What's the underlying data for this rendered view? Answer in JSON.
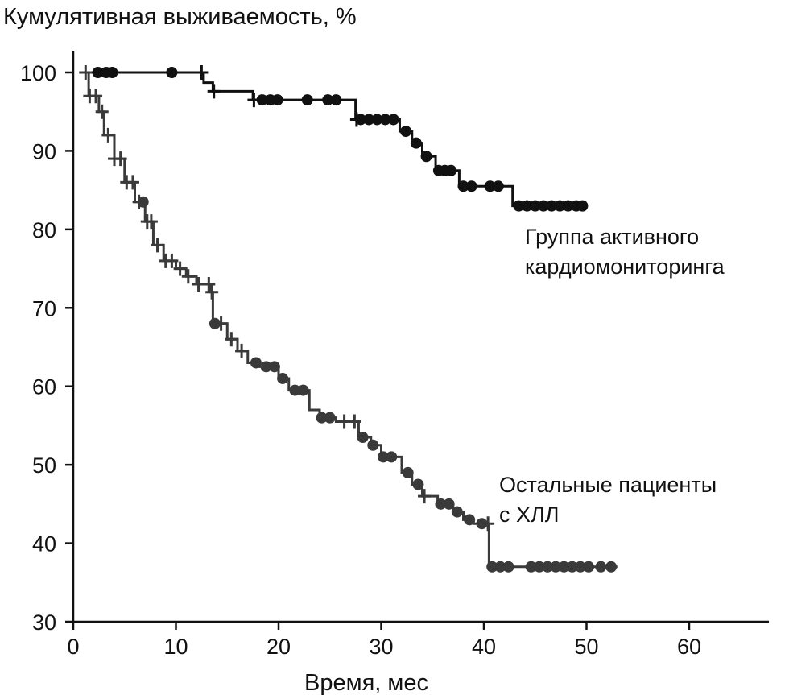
{
  "chart_data": {
    "type": "line",
    "subtype": "kaplan-meier",
    "ylabel": "Кумулятивная выживаемость, %",
    "xlabel": "Время, мес",
    "xlim": [
      0,
      68
    ],
    "ylim": [
      30,
      100
    ],
    "xticks": [
      0,
      10,
      20,
      30,
      40,
      50,
      60
    ],
    "yticks": [
      30,
      40,
      50,
      60,
      70,
      80,
      90,
      100
    ],
    "grid": false,
    "series": [
      {
        "name": "Группа активного кардиомониторинга",
        "label_lines": [
          "Группа активного",
          "кардиомониторинга"
        ],
        "color": "#111111",
        "steps": [
          [
            1,
            100
          ],
          [
            12.7,
            98.7
          ],
          [
            13.6,
            97.6
          ],
          [
            17.5,
            96.5
          ],
          [
            27.5,
            94
          ],
          [
            31.8,
            92.5
          ],
          [
            33,
            91
          ],
          [
            34,
            89.3
          ],
          [
            35.3,
            87.5
          ],
          [
            37.6,
            85.5
          ],
          [
            42.8,
            83
          ],
          [
            50,
            83
          ]
        ],
        "censored_circle": [
          2.4,
          3.2,
          3.8,
          9.6,
          18.4,
          19.2,
          19.9,
          22.8,
          24.8,
          25.6,
          28,
          28.8,
          29.6,
          30.4,
          31.2,
          32.4,
          33.4,
          34.4,
          35.6,
          36.2,
          36.8,
          38,
          38.8,
          40.6,
          41.4,
          43.4,
          44.2,
          45,
          45.8,
          46.6,
          47.4,
          48.2,
          49,
          49.6
        ],
        "censored_plus": [
          12.5,
          13.7,
          17.6,
          27.6
        ]
      },
      {
        "name": "Остальные пациенты с ХЛЛ",
        "label_lines": [
          "Остальные пациенты",
          "с ХЛЛ"
        ],
        "color": "#3a3a3a",
        "steps": [
          [
            1,
            100
          ],
          [
            1.5,
            97
          ],
          [
            2.5,
            95
          ],
          [
            3,
            92
          ],
          [
            4,
            89
          ],
          [
            5,
            86
          ],
          [
            6,
            83.5
          ],
          [
            7,
            81
          ],
          [
            7.8,
            78
          ],
          [
            8.8,
            76
          ],
          [
            10,
            75
          ],
          [
            11,
            74
          ],
          [
            12,
            73
          ],
          [
            13.3,
            72
          ],
          [
            13.6,
            68
          ],
          [
            15,
            66
          ],
          [
            16,
            64.5
          ],
          [
            17,
            63
          ],
          [
            18,
            62.5
          ],
          [
            20,
            61
          ],
          [
            21,
            59.5
          ],
          [
            23,
            57
          ],
          [
            24,
            56
          ],
          [
            25.6,
            55.5
          ],
          [
            27.8,
            53.5
          ],
          [
            29,
            52.5
          ],
          [
            30,
            51
          ],
          [
            32,
            49
          ],
          [
            33,
            47.5
          ],
          [
            34,
            46
          ],
          [
            35.5,
            45
          ],
          [
            37,
            44
          ],
          [
            38,
            43
          ],
          [
            39,
            42.5
          ],
          [
            40.5,
            37
          ],
          [
            53,
            37
          ]
        ],
        "censored_circle": [
          6.8,
          13.8,
          17.8,
          18.8,
          19.6,
          20.4,
          21.6,
          22.4,
          24.2,
          25,
          28.2,
          29.2,
          30.2,
          31,
          32.6,
          33.6,
          35.8,
          36.6,
          37.4,
          38.6,
          39.8,
          40.8,
          41.6,
          42.4,
          44.6,
          45.4,
          46.2,
          47,
          47.8,
          48.6,
          49.4,
          50.2,
          51.4,
          52.4
        ],
        "censored_plus": [
          1.2,
          1.6,
          2.2,
          2.8,
          3.4,
          4,
          4.6,
          5.2,
          5.8,
          6.4,
          7.2,
          7.6,
          8.2,
          9,
          9.6,
          10.4,
          11.2,
          12.2,
          13.2,
          13.5,
          14.4,
          15.4,
          16.4,
          26.4,
          27.4,
          34.2,
          40.4
        ]
      }
    ]
  }
}
